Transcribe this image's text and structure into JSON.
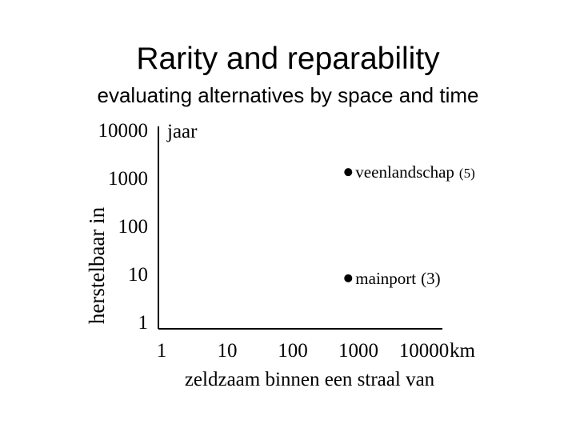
{
  "slide": {
    "title": "Rarity and reparability",
    "subtitle": "evaluating alternatives by space and time"
  },
  "chart_data": {
    "type": "scatter",
    "title": "",
    "x_scale": "log",
    "y_scale": "log",
    "xlabel": "zeldzaam binnen een straal van",
    "ylabel": "herstelbaar in",
    "x_unit": "km",
    "y_unit": "jaar",
    "x_ticks": [
      1,
      10,
      100,
      1000,
      10000
    ],
    "y_ticks": [
      1,
      10,
      100,
      1000,
      10000
    ],
    "x_tick_labels": [
      "1",
      "10",
      "100",
      "1000",
      "10000"
    ],
    "y_tick_labels": [
      "1",
      "10",
      "100",
      "1000",
      "10000"
    ],
    "grid": false,
    "points": [
      {
        "x": 700,
        "y": 1300,
        "label": "veenlandschap",
        "note": "(5)"
      },
      {
        "x": 700,
        "y": 8,
        "label": "mainport",
        "note": "(3)"
      }
    ],
    "point_color": "#000000"
  }
}
